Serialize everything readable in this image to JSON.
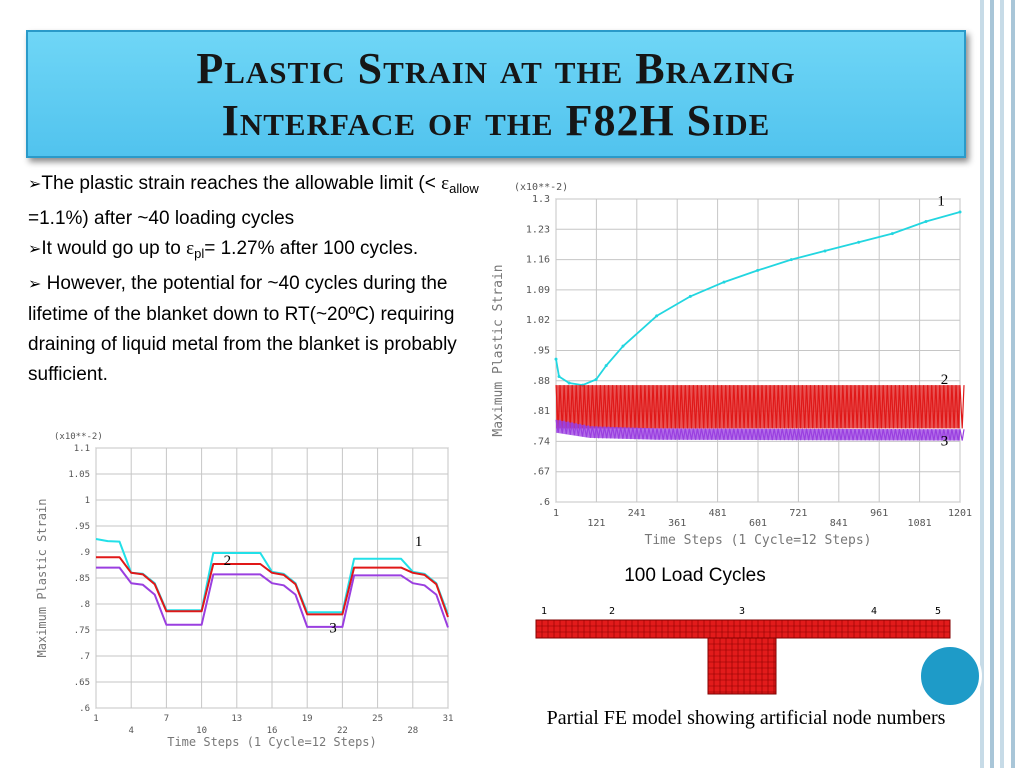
{
  "slide": {
    "title_line1": "Plastic Strain at the Brazing",
    "title_line2": "Interface of the F82H Side",
    "colors": {
      "title_bg": "#5ccaf2",
      "deco_bar": "#a9c6d8",
      "accent_circle": "#1e9bc8"
    }
  },
  "bullets": {
    "marker": "➢",
    "b1_text": "The plastic strain reaches the allowable limit (< ",
    "b1_eps": "ε",
    "b1_sub": "allow",
    "b1_after": " =1.1%) after ~40 loading cycles",
    "b2_text": "It would go up to ",
    "b2_eps": "ε",
    "b2_sub": "pl",
    "b2_after": "= 1.27% after 100 cycles.",
    "b3_text": " However, the potential for ~40 cycles during the lifetime of the blanket down to RT(~20ºC) requiring draining of liquid metal from the blanket is probably sufficient."
  },
  "captions": {
    "load_cycles": "100 Load Cycles",
    "fe_model": "Partial FE model showing artificial node numbers"
  },
  "chart_data": [
    {
      "type": "line",
      "xlabel": "Time Steps (1 Cycle=12 Steps)",
      "ylabel": "Maximum Plastic Strain",
      "scale_label": "(x10**-2)",
      "xlim": [
        1,
        31
      ],
      "ylim": [
        0.6,
        1.1
      ],
      "x_ticks": [
        "1",
        "4",
        "7",
        "10",
        "13",
        "16",
        "19",
        "22",
        "25",
        "28",
        "31"
      ],
      "y_ticks": [
        ".6",
        ".65",
        ".7",
        ".75",
        ".8",
        ".85",
        ".9",
        ".95",
        "1",
        "1.05",
        "1.1"
      ],
      "y_tick_values": [
        0.6,
        0.65,
        0.7,
        0.75,
        0.8,
        0.85,
        0.9,
        0.95,
        1.0,
        1.05,
        1.1
      ],
      "point_labels": [
        {
          "text": "1",
          "x": 28.5,
          "y": 0.912
        },
        {
          "text": "2",
          "x": 12.2,
          "y": 0.875
        },
        {
          "text": "3",
          "x": 21.2,
          "y": 0.745
        }
      ],
      "series": [
        {
          "color": "#22e0e8",
          "x": [
            1,
            2,
            3,
            4,
            5,
            6,
            7,
            8,
            9,
            10,
            11,
            12,
            13,
            14,
            15,
            16,
            17,
            18,
            19,
            20,
            21,
            22,
            23,
            24,
            25,
            26,
            27,
            28,
            29,
            30,
            31
          ],
          "y": [
            0.925,
            0.921,
            0.92,
            0.86,
            0.858,
            0.84,
            0.788,
            0.788,
            0.788,
            0.788,
            0.898,
            0.898,
            0.898,
            0.898,
            0.898,
            0.862,
            0.858,
            0.84,
            0.784,
            0.784,
            0.784,
            0.784,
            0.887,
            0.887,
            0.887,
            0.887,
            0.887,
            0.862,
            0.858,
            0.84,
            0.78
          ]
        },
        {
          "color": "#e01818",
          "x": [
            1,
            2,
            3,
            4,
            5,
            6,
            7,
            8,
            9,
            10,
            11,
            12,
            13,
            14,
            15,
            16,
            17,
            18,
            19,
            20,
            21,
            22,
            23,
            24,
            25,
            26,
            27,
            28,
            29,
            30,
            31
          ],
          "y": [
            0.89,
            0.89,
            0.89,
            0.86,
            0.857,
            0.838,
            0.786,
            0.786,
            0.786,
            0.786,
            0.877,
            0.877,
            0.877,
            0.877,
            0.877,
            0.86,
            0.856,
            0.838,
            0.78,
            0.78,
            0.78,
            0.78,
            0.87,
            0.87,
            0.87,
            0.87,
            0.87,
            0.86,
            0.856,
            0.838,
            0.775
          ]
        },
        {
          "color": "#9a3fe0",
          "x": [
            1,
            2,
            3,
            4,
            5,
            6,
            7,
            8,
            9,
            10,
            11,
            12,
            13,
            14,
            15,
            16,
            17,
            18,
            19,
            20,
            21,
            22,
            23,
            24,
            25,
            26,
            27,
            28,
            29,
            30,
            31
          ],
          "y": [
            0.87,
            0.87,
            0.87,
            0.84,
            0.837,
            0.818,
            0.76,
            0.76,
            0.76,
            0.76,
            0.857,
            0.857,
            0.857,
            0.857,
            0.857,
            0.84,
            0.836,
            0.818,
            0.756,
            0.756,
            0.756,
            0.756,
            0.855,
            0.855,
            0.855,
            0.855,
            0.855,
            0.84,
            0.836,
            0.818,
            0.755
          ]
        }
      ]
    },
    {
      "type": "line",
      "xlabel": "Time Steps (1 Cycle=12 Steps)",
      "ylabel": "Maximum Plastic Strain",
      "scale_label": "(x10**-2)",
      "xlim": [
        1,
        1201
      ],
      "ylim": [
        0.6,
        1.3
      ],
      "x_ticks": [
        "1",
        "121",
        "241",
        "361",
        "481",
        "601",
        "721",
        "841",
        "961",
        "1081",
        "1201"
      ],
      "x_tick_values": [
        1,
        121,
        241,
        361,
        481,
        601,
        721,
        841,
        961,
        1081,
        1201
      ],
      "y_ticks": [
        ".6",
        ".67",
        ".74",
        ".81",
        ".88",
        ".95",
        "1.02",
        "1.09",
        "1.16",
        "1.23",
        "1.3"
      ],
      "y_tick_values": [
        0.6,
        0.67,
        0.74,
        0.81,
        0.88,
        0.95,
        1.02,
        1.09,
        1.16,
        1.23,
        1.3
      ],
      "point_labels": [
        {
          "text": "1",
          "x": 1145,
          "y": 1.285
        },
        {
          "text": "2",
          "x": 1155,
          "y": 0.873
        },
        {
          "text": "3",
          "x": 1155,
          "y": 0.73
        }
      ],
      "series": [
        {
          "color": "#22d6e0",
          "style": "monotonic",
          "x": [
            1,
            10,
            40,
            80,
            120,
            150,
            200,
            300,
            400,
            500,
            600,
            700,
            800,
            900,
            1000,
            1100,
            1201
          ],
          "y": [
            0.93,
            0.89,
            0.875,
            0.87,
            0.883,
            0.915,
            0.96,
            1.03,
            1.075,
            1.108,
            1.135,
            1.16,
            1.18,
            1.2,
            1.22,
            1.248,
            1.27
          ]
        },
        {
          "color": "#e01818",
          "style": "band",
          "x": [
            1,
            1201
          ],
          "y_low": [
            0.77,
            0.77
          ],
          "y_high": [
            0.87,
            0.87
          ]
        },
        {
          "color": "#9a3fe0",
          "style": "band",
          "x": [
            1,
            100,
            300,
            1201
          ],
          "y_low": [
            0.76,
            0.748,
            0.744,
            0.742
          ],
          "y_high": [
            0.79,
            0.775,
            0.77,
            0.768
          ]
        }
      ]
    }
  ],
  "fe_model": {
    "node_labels": [
      "1",
      "2",
      "3",
      "4",
      "5"
    ],
    "mesh_color": "#e21b1b"
  }
}
